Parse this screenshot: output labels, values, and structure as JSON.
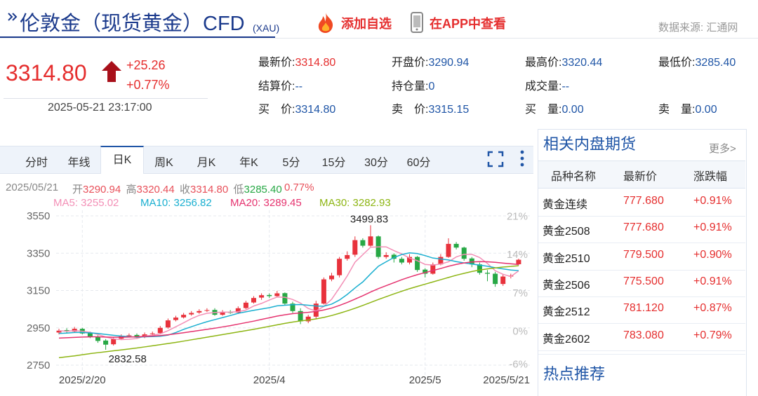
{
  "header": {
    "title": "伦敦金（现货黄金）CFD",
    "code": "(XAU)",
    "add_watch": "添加自选",
    "view_app": "在APP中查看",
    "source": "数据来源: 汇通网"
  },
  "quote": {
    "price": "3314.80",
    "change": "+25.26",
    "change_pct": "+0.77%",
    "time": "2025-05-21 23:17:00"
  },
  "stats": [
    [
      {
        "label": "最新价:",
        "value": "3314.80"
      },
      {
        "label": "开盘价:",
        "value": "3290.94"
      },
      {
        "label": "最高价:",
        "value": "3320.44"
      },
      {
        "label": "最低价:",
        "value": "3285.40"
      }
    ],
    [
      {
        "label": "结算价:",
        "value": "--"
      },
      {
        "label": "持仓量:",
        "value": "0"
      },
      {
        "label": "成交量:",
        "value": "--"
      }
    ],
    [
      {
        "label": "买　价:",
        "value": "3314.80"
      },
      {
        "label": "卖　价:",
        "value": "3315.15"
      },
      {
        "label": "买　量:",
        "value": "0.00"
      },
      {
        "label": "卖　量:",
        "value": "0.00"
      }
    ]
  ],
  "tabs": [
    "分时",
    "年线",
    "日K",
    "周K",
    "月K",
    "年K",
    "5分",
    "15分",
    "30分",
    "60分"
  ],
  "chart_info": {
    "date": "2025/05/21",
    "items": [
      {
        "label": "开",
        "value": "3290.94"
      },
      {
        "label": "高",
        "value": "3320.44"
      },
      {
        "label": "收",
        "value": "3314.80"
      },
      {
        "label": "低",
        "value": "3285.40"
      }
    ],
    "pct": "0.77%"
  },
  "chart_data": {
    "type": "candlestick",
    "categories": [
      null,
      null,
      null,
      "2025/2/20",
      null,
      null,
      null,
      null,
      null,
      null,
      null,
      null,
      null,
      null,
      null,
      null,
      null,
      null,
      null,
      null,
      null,
      null,
      null,
      null,
      null,
      null,
      null,
      "2025/4",
      null,
      null,
      null,
      null,
      null,
      null,
      null,
      null,
      null,
      null,
      null,
      null,
      null,
      null,
      null,
      null,
      null,
      null,
      null,
      "2025/5",
      null,
      null,
      null,
      null,
      null,
      null,
      null,
      null,
      null,
      null,
      null,
      "2025/5/21"
    ],
    "open": [
      2925,
      2938,
      2930,
      2945,
      2922,
      2902,
      2882,
      2862,
      2892,
      2906,
      2912,
      2900,
      2916,
      2922,
      2952,
      2992,
      3006,
      3022,
      3032,
      3042,
      3046,
      3020,
      3036,
      3032,
      3056,
      3086,
      3112,
      3126,
      3120,
      3136,
      3080,
      3040,
      2985,
      3010,
      3080,
      3210,
      3232,
      3320,
      3342,
      3420,
      3390,
      3440,
      3330,
      3342,
      3320,
      3300,
      3330,
      3262,
      3240,
      3290,
      3330,
      3400,
      3380,
      3322,
      3290,
      3245,
      3240,
      3185,
      3225,
      3290.94
    ],
    "high": [
      2945,
      2948,
      2955,
      2950,
      2930,
      2910,
      2890,
      2900,
      2915,
      2920,
      2920,
      2925,
      2930,
      2960,
      3000,
      3015,
      3030,
      3040,
      3050,
      3055,
      3055,
      3045,
      3045,
      3065,
      3095,
      3120,
      3135,
      3135,
      3148,
      3140,
      3090,
      3055,
      3020,
      3095,
      3220,
      3245,
      3330,
      3360,
      3440,
      3430,
      3499.83,
      3445,
      3355,
      3350,
      3330,
      3345,
      3335,
      3270,
      3300,
      3345,
      3430,
      3410,
      3385,
      3330,
      3300,
      3260,
      3250,
      3235,
      3240,
      3320.44
    ],
    "low": [
      2915,
      2920,
      2925,
      2915,
      2895,
      2870,
      2832.58,
      2855,
      2885,
      2900,
      2895,
      2895,
      2910,
      2915,
      2945,
      2985,
      3000,
      3015,
      3025,
      3035,
      3015,
      3015,
      3025,
      3025,
      3050,
      3080,
      3100,
      3110,
      3115,
      3070,
      3030,
      2970,
      2975,
      3000,
      3075,
      3200,
      3220,
      3310,
      3330,
      3380,
      3385,
      3320,
      3320,
      3300,
      3290,
      3290,
      3250,
      3220,
      3235,
      3285,
      3325,
      3370,
      3310,
      3275,
      3235,
      3200,
      3170,
      3175,
      3215,
      3285.4
    ],
    "close": [
      2935,
      2930,
      2945,
      2920,
      2900,
      2880,
      2860,
      2890,
      2905,
      2910,
      2900,
      2915,
      2920,
      2950,
      2990,
      3005,
      3020,
      3030,
      3040,
      3045,
      3020,
      3035,
      3030,
      3055,
      3085,
      3110,
      3125,
      3120,
      3135,
      3080,
      3040,
      2985,
      3010,
      3080,
      3210,
      3230,
      3320,
      3340,
      3420,
      3390,
      3440,
      3330,
      3340,
      3320,
      3300,
      3330,
      3260,
      3240,
      3290,
      3330,
      3400,
      3380,
      3320,
      3290,
      3245,
      3240,
      3185,
      3225,
      3230,
      3314.8
    ],
    "up_color": "#e8323c",
    "down_color": "#27a845",
    "series": [
      {
        "legend": "MA5: 3255.02",
        "color": "#f38fb6",
        "values": [
          2935,
          2932,
          2935,
          2932,
          2926,
          2915,
          2901,
          2891,
          2887,
          2889,
          2893,
          2906,
          2910,
          2918,
          2935,
          2956,
          2977,
          2999,
          3017,
          3028,
          3032,
          3034,
          3034,
          3037,
          3045,
          3067,
          3081,
          3099,
          3115,
          3114,
          3102,
          3083,
          3054,
          3040,
          3065,
          3103,
          3164,
          3228,
          3302,
          3342,
          3382,
          3384,
          3384,
          3364,
          3346,
          3324,
          3310,
          3290,
          3286,
          3292,
          3304,
          3330,
          3344,
          3344,
          3327,
          3295,
          3256,
          3237,
          3225,
          3255.02
        ]
      },
      {
        "legend": "MA10: 3256.82",
        "color": "#1aafd0",
        "values": [
          2920,
          2922,
          2925,
          2925,
          2923,
          2920,
          2915,
          2910,
          2906,
          2903,
          2900,
          2902,
          2903,
          2905,
          2911,
          2925,
          2942,
          2956,
          2970,
          2983,
          2994,
          3005,
          3016,
          3028,
          3036,
          3044,
          3051,
          3058,
          3068,
          3071,
          3074,
          3075,
          3071,
          3067,
          3066,
          3077,
          3099,
          3129,
          3164,
          3196,
          3239,
          3280,
          3304,
          3327,
          3343,
          3352,
          3348,
          3337,
          3324,
          3319,
          3314,
          3305,
          3298,
          3292,
          3286,
          3280,
          3272,
          3266,
          3260,
          3256.82
        ]
      },
      {
        "legend": "MA20: 3289.45",
        "color": "#e5336f",
        "values": [
          2895,
          2897,
          2899,
          2901,
          2902,
          2902,
          2901,
          2900,
          2900,
          2901,
          2902,
          2904,
          2906,
          2909,
          2913,
          2918,
          2924,
          2930,
          2936,
          2942,
          2948,
          2955,
          2962,
          2970,
          2978,
          2986,
          2995,
          3004,
          3013,
          3020,
          3026,
          3030,
          3033,
          3038,
          3046,
          3056,
          3070,
          3086,
          3104,
          3122,
          3142,
          3160,
          3176,
          3192,
          3208,
          3222,
          3235,
          3246,
          3257,
          3268,
          3280,
          3290,
          3298,
          3303,
          3305,
          3304,
          3301,
          3297,
          3293,
          3289.45
        ]
      },
      {
        "legend": "MA30: 3282.93",
        "color": "#8db513",
        "values": [
          2790,
          2795,
          2800,
          2806,
          2812,
          2817,
          2822,
          2827,
          2832,
          2837,
          2842,
          2848,
          2854,
          2860,
          2866,
          2872,
          2879,
          2886,
          2893,
          2900,
          2907,
          2914,
          2921,
          2928,
          2935,
          2942,
          2950,
          2958,
          2966,
          2974,
          2981,
          2987,
          2992,
          2998,
          3006,
          3016,
          3028,
          3041,
          3055,
          3070,
          3086,
          3102,
          3117,
          3132,
          3146,
          3160,
          3172,
          3184,
          3196,
          3208,
          3220,
          3232,
          3242,
          3252,
          3260,
          3266,
          3271,
          3276,
          3279,
          3282.93
        ]
      }
    ],
    "ylim": [
      2660,
      3580
    ],
    "yticks": [
      3550,
      3350,
      3150,
      2950,
      2750
    ],
    "y2lim": [
      -9.3,
      22.1
    ],
    "y2ticks": [
      {
        "value": 21,
        "label": "21%"
      },
      {
        "value": 14,
        "label": "14%"
      },
      {
        "value": 7,
        "label": "7%"
      },
      {
        "value": 0,
        "label": "0%"
      },
      {
        "value": -6,
        "label": "-6%"
      }
    ],
    "grid": true
  },
  "sidebar": {
    "title": "相关内盘期货",
    "more": "更多>",
    "columns": [
      "品种名称",
      "最新价",
      "涨跌幅"
    ],
    "rows": [
      [
        "黄金连续",
        "777.680",
        "+0.91%"
      ],
      [
        "黄金2508",
        "777.680",
        "+0.91%"
      ],
      [
        "黄金2510",
        "779.500",
        "+0.90%"
      ],
      [
        "黄金2506",
        "775.500",
        "+0.91%"
      ],
      [
        "黄金2512",
        "781.120",
        "+0.87%"
      ],
      [
        "黄金2602",
        "783.080",
        "+0.79%"
      ]
    ],
    "hot": "热点推荐"
  }
}
